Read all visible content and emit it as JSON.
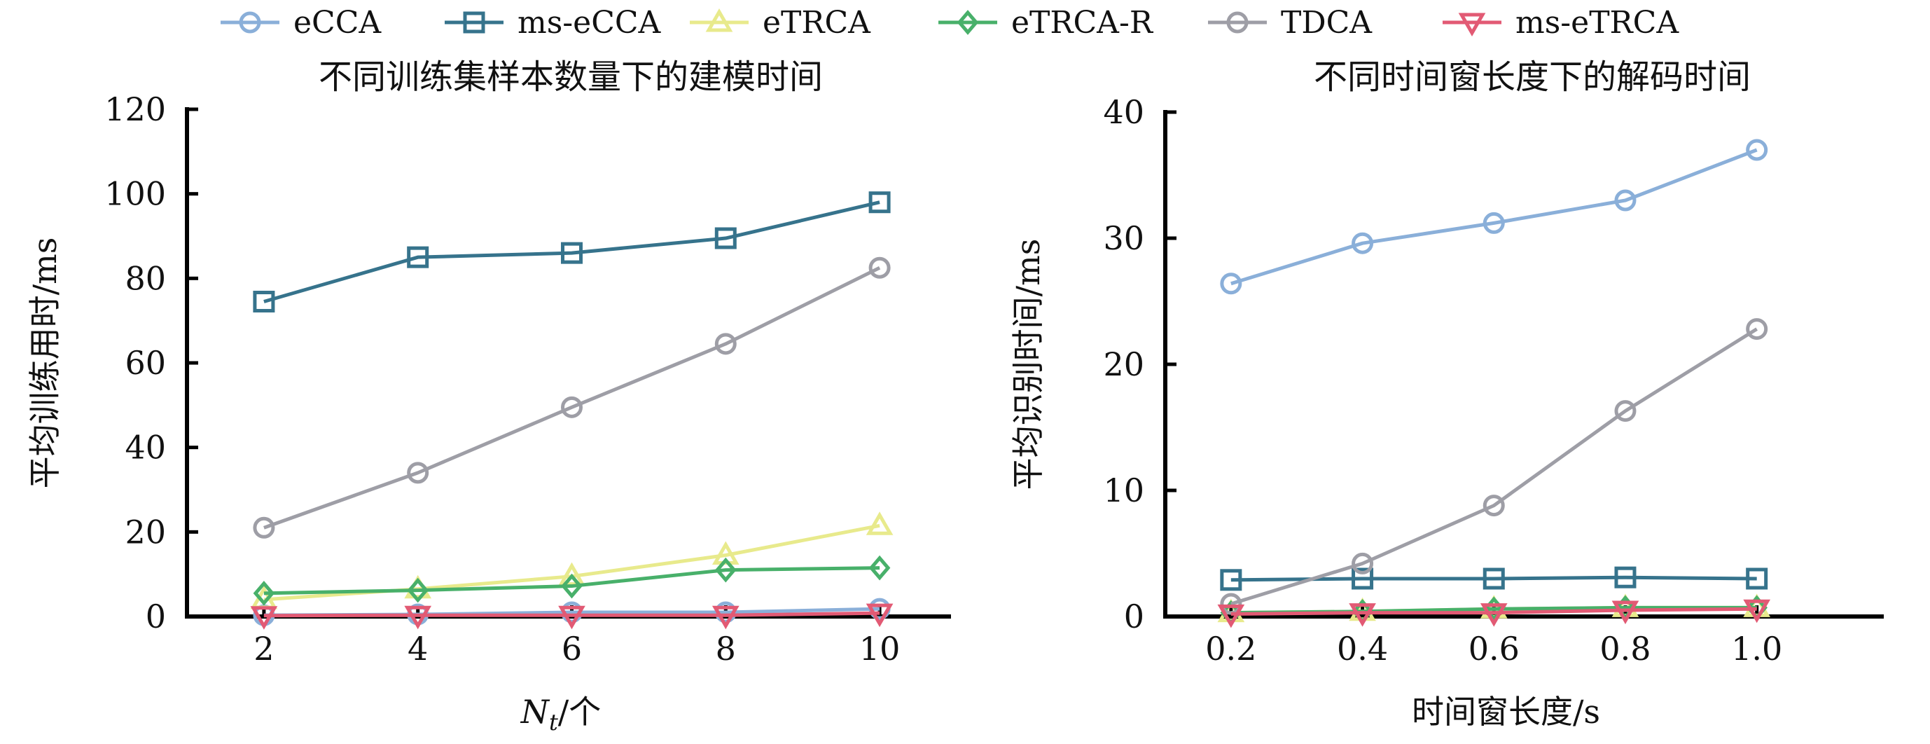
{
  "legend": [
    {
      "name": "eCCA",
      "color": "#8aafd9",
      "marker": "circle"
    },
    {
      "name": "ms-eCCA",
      "color": "#36738c",
      "marker": "square"
    },
    {
      "name": "eTRCA",
      "color": "#e8ea8c",
      "marker": "triangle-up"
    },
    {
      "name": "eTRCA-R",
      "color": "#48b06a",
      "marker": "diamond"
    },
    {
      "name": "TDCA",
      "color": "#9e9ea6",
      "marker": "circle"
    },
    {
      "name": "ms-eTRCA",
      "color": "#e25a74",
      "marker": "triangle-down"
    }
  ],
  "chart_data": [
    {
      "type": "line",
      "title": "不同训练集样本数量下的建模时间",
      "xlabel": "N_t/个",
      "xlabel_main": "N",
      "xlabel_sub": "t",
      "xlabel_suffix": "/个",
      "ylabel": "平均训练用时/ms",
      "x": [
        2,
        4,
        6,
        8,
        10
      ],
      "xticks": [
        "2",
        "4",
        "6",
        "8",
        "10"
      ],
      "xlim": [
        1,
        10.9
      ],
      "ylim": [
        0,
        120
      ],
      "yticks": [
        0,
        20,
        40,
        60,
        80,
        100,
        120
      ],
      "grid": false,
      "legend_position": "top",
      "series": [
        {
          "name": "eCCA",
          "values": [
            0.3,
            0.5,
            1.0,
            1.0,
            1.8
          ]
        },
        {
          "name": "ms-eCCA",
          "values": [
            74.5,
            85,
            86,
            89.5,
            98
          ]
        },
        {
          "name": "eTRCA",
          "values": [
            4,
            6.5,
            9.5,
            14.5,
            21.5
          ]
        },
        {
          "name": "eTRCA-R",
          "values": [
            5.5,
            6.2,
            7.2,
            11,
            11.5
          ]
        },
        {
          "name": "TDCA",
          "values": [
            21,
            34,
            49.5,
            64.5,
            82.5
          ]
        },
        {
          "name": "ms-eTRCA",
          "values": [
            0.2,
            0.3,
            0.3,
            0.3,
            0.8
          ]
        }
      ]
    },
    {
      "type": "line",
      "title": "不同时间窗长度下的解码时间",
      "xlabel": "时间窗长度/s",
      "ylabel": "平均识别时间/ms",
      "x": [
        0.2,
        0.4,
        0.6,
        0.8,
        1.0
      ],
      "xticks": [
        "0.2",
        "0.4",
        "0.6",
        "0.8",
        "1.0"
      ],
      "xlim": [
        0.1,
        1.19
      ],
      "ylim": [
        0,
        40
      ],
      "yticks": [
        0,
        10,
        20,
        30,
        40
      ],
      "grid": false,
      "legend_position": "top",
      "series": [
        {
          "name": "eCCA",
          "values": [
            26.4,
            29.6,
            31.2,
            33,
            37
          ]
        },
        {
          "name": "ms-eCCA",
          "values": [
            2.9,
            3.0,
            3.0,
            3.1,
            3.0
          ]
        },
        {
          "name": "eTRCA",
          "values": [
            0.3,
            0.4,
            0.6,
            0.7,
            0.7
          ]
        },
        {
          "name": "eTRCA-R",
          "values": [
            0.3,
            0.4,
            0.6,
            0.7,
            0.7
          ]
        },
        {
          "name": "TDCA",
          "values": [
            1.0,
            4.2,
            8.8,
            16.3,
            22.8
          ]
        },
        {
          "name": "ms-eTRCA",
          "values": [
            0.2,
            0.3,
            0.3,
            0.5,
            0.6
          ]
        }
      ]
    }
  ]
}
